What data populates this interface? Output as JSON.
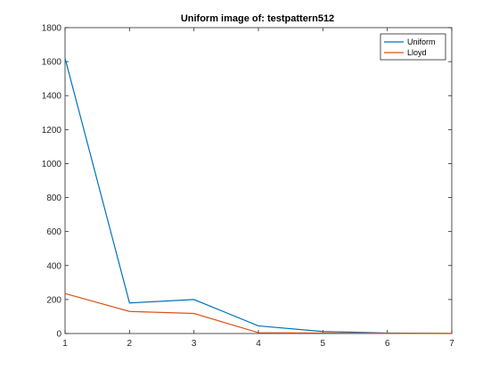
{
  "window": {
    "background": "#ffffff"
  },
  "chart_data": {
    "type": "line",
    "title": "Uniform image of: testpattern512",
    "xlabel": "",
    "ylabel": "",
    "xlim": [
      1,
      7
    ],
    "ylim": [
      0,
      1800
    ],
    "x_ticks": [
      1,
      2,
      3,
      4,
      5,
      6,
      7
    ],
    "y_ticks": [
      0,
      200,
      400,
      600,
      800,
      1000,
      1200,
      1400,
      1600,
      1800
    ],
    "grid": false,
    "legend_position": "top-right",
    "x": [
      1,
      2,
      3,
      4,
      5,
      6,
      7
    ],
    "series": [
      {
        "name": "Uniform",
        "color": "#0072BD",
        "values": [
          1620,
          180,
          200,
          45,
          12,
          3,
          1
        ]
      },
      {
        "name": "Lloyd",
        "color": "#D95319",
        "values": [
          235,
          130,
          118,
          5,
          3,
          1,
          0
        ]
      }
    ]
  }
}
